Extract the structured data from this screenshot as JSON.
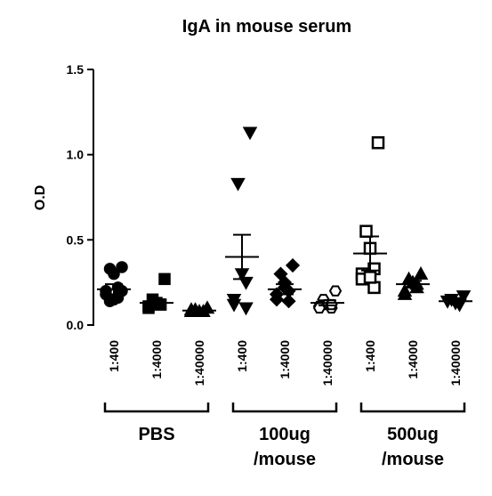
{
  "chart_data": {
    "type": "dot",
    "title": "IgA in mouse serum",
    "ylabel": "O.D",
    "color": "#000000",
    "ylim": [
      0,
      1.5
    ],
    "yticks": [
      {
        "value": 0,
        "label": "0.0"
      },
      0.5,
      {
        "value": 1,
        "label": "1.0"
      },
      1.5
    ],
    "groups": [
      {
        "label": [
          "PBS"
        ],
        "categories": [
          "1:400",
          "1:4000",
          "1:40000"
        ],
        "markers": [
          "circle",
          "square",
          "triangle-up"
        ],
        "points": [
          [
            0.34,
            0.33,
            0.3,
            0.22,
            0.2,
            0.18,
            0.16,
            0.15,
            0.14,
            0.2
          ],
          [
            0.27,
            0.15,
            0.13,
            0.12,
            0.11,
            0.1,
            0.12
          ],
          [
            0.1,
            0.09,
            0.08,
            0.08,
            0.09,
            0.08
          ]
        ],
        "means": [
          0.21,
          0.13,
          0.085
        ],
        "sems": [
          0.03,
          0.02,
          0.005
        ]
      },
      {
        "label": [
          "100ug",
          "/mouse"
        ],
        "categories": [
          "1:400",
          "1:4000",
          "1:40000"
        ],
        "markers": [
          "triangle-down",
          "diamond",
          "hexagon-open"
        ],
        "points": [
          [
            1.13,
            0.83,
            0.3,
            0.25,
            0.15,
            0.12,
            0.1
          ],
          [
            0.35,
            0.3,
            0.25,
            0.2,
            0.18,
            0.15,
            0.14,
            0.22
          ],
          [
            0.2,
            0.15,
            0.12,
            0.1,
            0.11,
            0.1,
            0.12
          ]
        ],
        "means": [
          0.4,
          0.21,
          0.13
        ],
        "sems": [
          0.13,
          0.03,
          0.015
        ]
      },
      {
        "label": [
          "500ug",
          "/mouse"
        ],
        "categories": [
          "1:400",
          "1:4000",
          "1:40000"
        ],
        "markers": [
          "square-open",
          "triangle-up",
          "triangle-down"
        ],
        "points": [
          [
            1.07,
            0.55,
            0.45,
            0.33,
            0.3,
            0.27,
            0.22,
            0.28
          ],
          [
            0.3,
            0.27,
            0.25,
            0.22,
            0.2,
            0.18,
            0.24
          ],
          [
            0.17,
            0.15,
            0.13,
            0.12,
            0.14
          ]
        ],
        "means": [
          0.42,
          0.24,
          0.14
        ],
        "sems": [
          0.1,
          0.02,
          0.01
        ]
      }
    ]
  }
}
